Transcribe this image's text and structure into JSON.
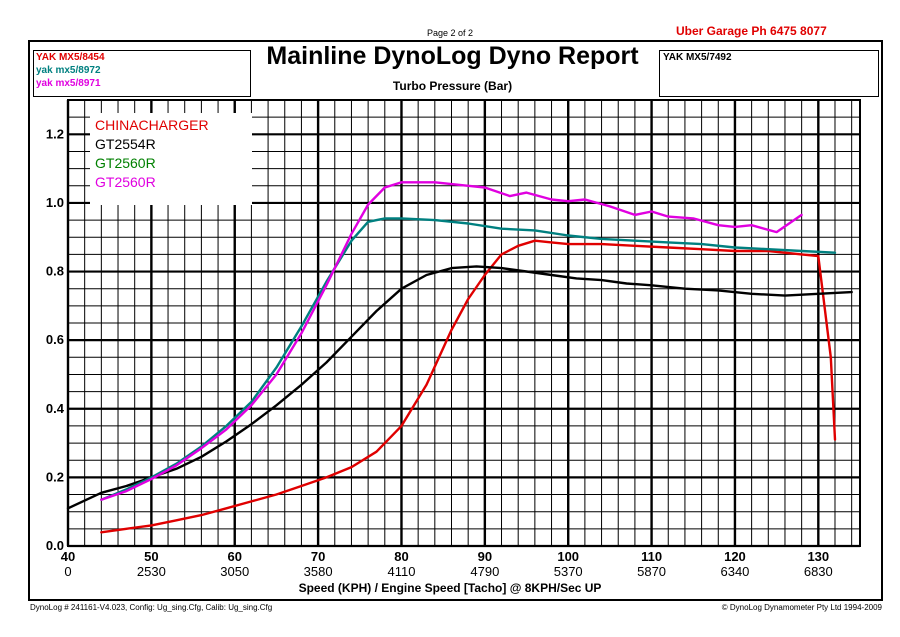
{
  "page_label": "Page 2 of 2",
  "garage": "Uber Garage  Ph 6475 8077",
  "title": "Mainline DynoLog Dyno Report",
  "subtitle": "Turbo Pressure (Bar)",
  "runs_left": [
    {
      "label": "YAK MX5/8454",
      "color": "#e00000"
    },
    {
      "label": "yak mx5/8972",
      "color": "#008080"
    },
    {
      "label": "yak mx5/8971",
      "color": "#e000e0"
    }
  ],
  "runs_right": [
    {
      "label": "YAK MX5/7492",
      "color": "#000000"
    }
  ],
  "footer_left": "DynoLog # 241161-V4.023,  Config: Ug_sing.Cfg,  Calib: Ug_sing.Cfg",
  "footer_right": "© DynoLog Dynamometer Pty Ltd 1994-2009",
  "chart_data": {
    "type": "line",
    "title": "Turbo Pressure (Bar)",
    "xlabel": "Speed (KPH) / Engine Speed [Tacho] @ 8KPH/Sec UP",
    "ylabel": "",
    "xlim": [
      40,
      135
    ],
    "ylim": [
      0.0,
      1.3
    ],
    "grid": true,
    "x_ticks": [
      40,
      50,
      60,
      70,
      80,
      90,
      100,
      110,
      120,
      130
    ],
    "x_secondary_ticks": [
      "0",
      "2530",
      "3050",
      "3580",
      "4110",
      "4790",
      "5370",
      "5870",
      "6340",
      "6830"
    ],
    "y_ticks": [
      0.0,
      0.2,
      0.4,
      0.6,
      0.8,
      1.0,
      1.2
    ],
    "y_tick_labels": [
      "0.0",
      "0.2",
      "0.4",
      "0.6",
      "0.8",
      "1.0",
      "1.2"
    ],
    "legend_placement": "top-left",
    "series": [
      {
        "name": "CHINACHARGER",
        "color": "#e00000",
        "x": [
          44,
          47,
          50,
          53,
          56,
          59,
          62,
          65,
          68,
          71,
          74,
          77,
          80,
          83,
          86,
          88,
          90,
          92,
          94,
          96,
          98,
          100,
          104,
          108,
          112,
          116,
          120,
          124,
          128,
          130,
          131.5,
          132
        ],
        "y": [
          0.04,
          0.05,
          0.06,
          0.075,
          0.09,
          0.11,
          0.13,
          0.15,
          0.175,
          0.2,
          0.23,
          0.275,
          0.35,
          0.47,
          0.63,
          0.72,
          0.79,
          0.85,
          0.875,
          0.89,
          0.885,
          0.88,
          0.88,
          0.875,
          0.87,
          0.865,
          0.86,
          0.86,
          0.85,
          0.845,
          0.55,
          0.31
        ]
      },
      {
        "name": "GT2554R",
        "color": "#000000",
        "x": [
          40,
          44,
          47,
          50,
          53,
          56,
          59,
          62,
          65,
          68,
          71,
          74,
          77,
          80,
          83,
          86,
          89,
          92,
          95,
          98,
          101,
          104,
          107,
          110,
          114,
          118,
          122,
          126,
          130,
          134
        ],
        "y": [
          0.11,
          0.155,
          0.175,
          0.2,
          0.225,
          0.26,
          0.305,
          0.355,
          0.41,
          0.47,
          0.535,
          0.61,
          0.685,
          0.75,
          0.79,
          0.81,
          0.815,
          0.81,
          0.8,
          0.79,
          0.78,
          0.775,
          0.765,
          0.76,
          0.75,
          0.745,
          0.735,
          0.73,
          0.735,
          0.74
        ]
      },
      {
        "name": "GT2560R",
        "color": "#008080",
        "x": [
          44,
          47,
          50,
          53,
          56,
          59,
          62,
          65,
          68,
          71,
          74,
          76,
          78,
          80,
          84,
          88,
          92,
          96,
          100,
          104,
          108,
          112,
          116,
          120,
          124,
          128,
          132
        ],
        "y": [
          0.135,
          0.165,
          0.2,
          0.24,
          0.29,
          0.35,
          0.42,
          0.52,
          0.64,
          0.77,
          0.89,
          0.945,
          0.955,
          0.955,
          0.95,
          0.94,
          0.925,
          0.92,
          0.905,
          0.895,
          0.89,
          0.885,
          0.88,
          0.87,
          0.865,
          0.86,
          0.855
        ]
      },
      {
        "name": "GT2560R",
        "color": "#e000e0",
        "x": [
          44,
          47,
          50,
          53,
          56,
          59,
          62,
          65,
          68,
          71,
          74,
          76,
          78,
          80,
          84,
          88,
          90,
          93,
          95,
          98,
          100,
          102,
          105,
          108,
          110,
          112,
          115,
          118,
          120,
          122,
          125,
          128
        ],
        "y": [
          0.135,
          0.16,
          0.195,
          0.235,
          0.285,
          0.34,
          0.41,
          0.5,
          0.62,
          0.76,
          0.91,
          0.995,
          1.045,
          1.06,
          1.06,
          1.05,
          1.045,
          1.02,
          1.03,
          1.01,
          1.005,
          1.01,
          0.99,
          0.965,
          0.975,
          0.96,
          0.955,
          0.935,
          0.93,
          0.935,
          0.915,
          0.965
        ]
      }
    ]
  }
}
